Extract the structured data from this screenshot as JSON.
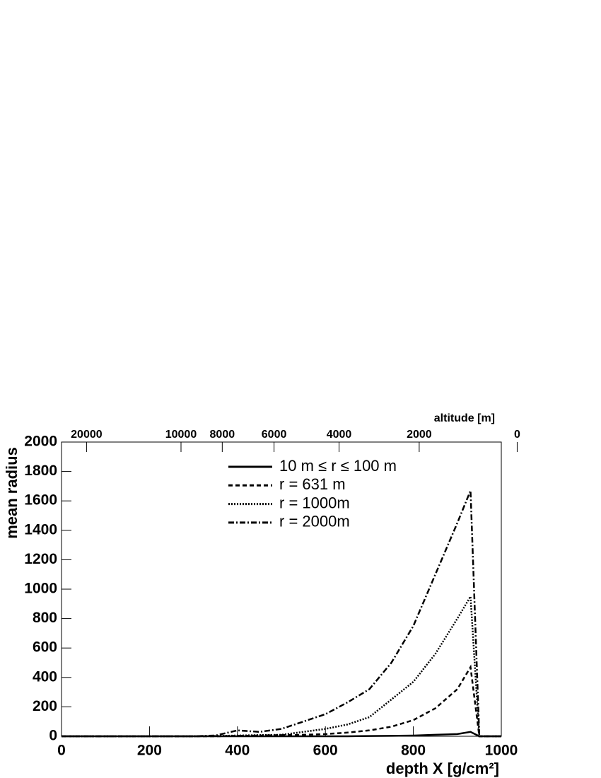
{
  "chart_data": {
    "type": "line",
    "xlabel": "depth X [g/cm²]",
    "ylabel": "mean radius",
    "x2label": "altitude [m]",
    "x": [
      0,
      50,
      100,
      150,
      200,
      250,
      300,
      350,
      400,
      450,
      500,
      550,
      600,
      650,
      700,
      750,
      800,
      850,
      900,
      930,
      950,
      1000
    ],
    "series": [
      {
        "name": "10 m ≤ r ≤ 100 m",
        "color": "#000000",
        "dash": "none",
        "values": [
          0,
          0,
          0,
          0,
          0,
          0,
          0,
          0,
          0,
          0,
          0,
          0,
          0,
          0,
          2,
          3,
          5,
          10,
          15,
          30,
          0,
          0
        ]
      },
      {
        "name": "r = 631 m",
        "color": "#000000",
        "dash": "6,4",
        "values": [
          0,
          0,
          0,
          0,
          0,
          0,
          0,
          0,
          3,
          5,
          8,
          10,
          15,
          25,
          40,
          65,
          110,
          190,
          320,
          470,
          0,
          0
        ]
      },
      {
        "name": "r = 1000m",
        "color": "#000000",
        "dash": "2,2",
        "values": [
          0,
          0,
          0,
          0,
          0,
          0,
          0,
          2,
          5,
          8,
          10,
          30,
          50,
          80,
          130,
          250,
          370,
          560,
          800,
          950,
          0,
          0
        ]
      },
      {
        "name": "r = 2000m",
        "color": "#000000",
        "dash": "8,3,2,3",
        "values": [
          0,
          0,
          0,
          0,
          0,
          0,
          0,
          5,
          40,
          30,
          50,
          100,
          150,
          230,
          320,
          500,
          750,
          1100,
          1450,
          1670,
          0,
          0
        ]
      }
    ],
    "xlim": [
      0,
      1000
    ],
    "xticks": [
      0,
      200,
      400,
      600,
      800,
      1000
    ],
    "ylim": [
      0,
      2000
    ],
    "yticks": [
      0,
      200,
      400,
      600,
      800,
      1000,
      1200,
      1400,
      1600,
      1800,
      2000
    ],
    "x2ticks": [
      20000,
      10000,
      8000,
      6000,
      4000,
      2000,
      0
    ],
    "grid": false
  }
}
